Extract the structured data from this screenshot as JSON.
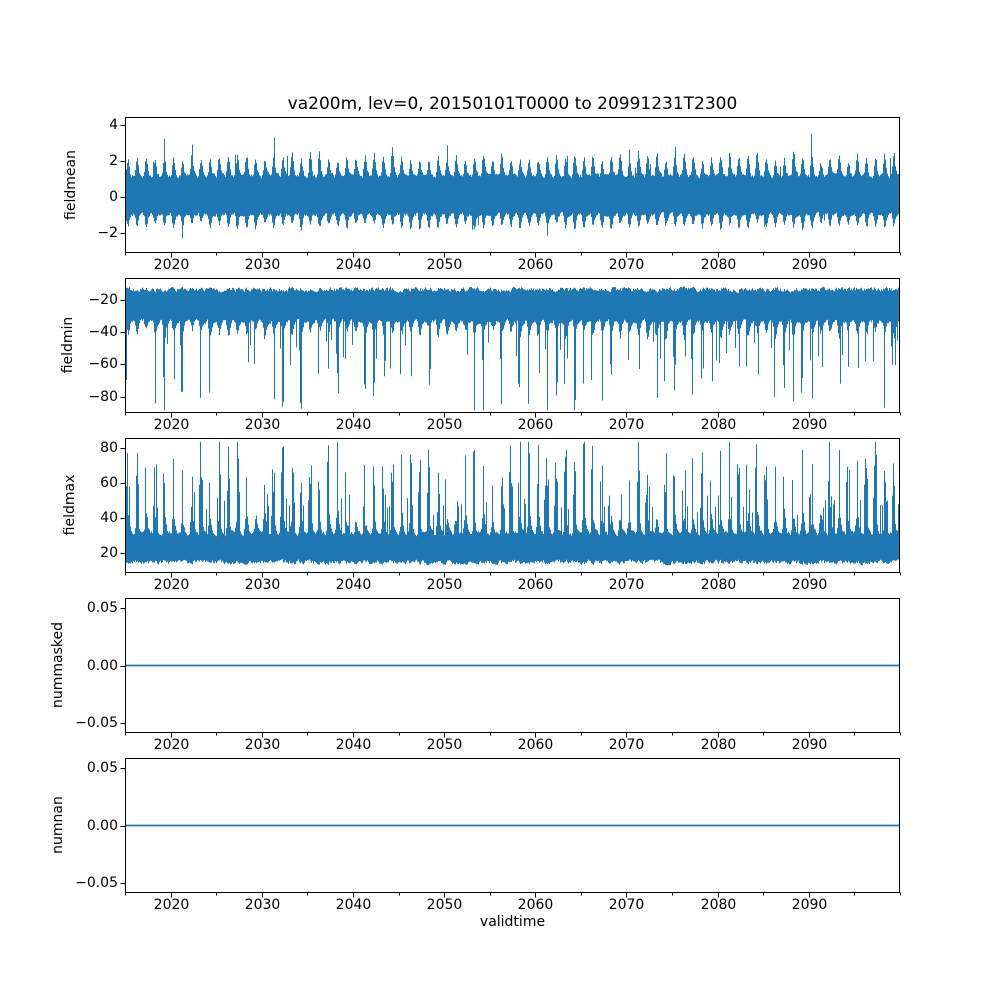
{
  "figure": {
    "title": "va200m, lev=0, 20150101T0000 to 20991231T2300",
    "xlabel": "validtime",
    "line_color": "#1f77b4",
    "background": "#ffffff",
    "axes_color": "#000000"
  },
  "chart_data": [
    {
      "type": "line",
      "title": "va200m, lev=0, 20150101T0000 to 20991231T2300",
      "ylabel": "fieldmean",
      "series_name": "fieldmean",
      "xlim": [
        2015,
        2100
      ],
      "ylim": [
        -3.08,
        4.45
      ],
      "yticks": [
        -2,
        0,
        2,
        4
      ],
      "ytick_decimals": 0,
      "xticks": [
        2020,
        2030,
        2040,
        2050,
        2060,
        2070,
        2080,
        2090
      ],
      "xminor_step": 5,
      "grid": false,
      "legend": "none",
      "summary": {
        "description": "dense hourly mean with annual cycle",
        "typical_band": [
          -1.7,
          2.4
        ],
        "min": -2.78,
        "max": 3.95
      },
      "gen": {
        "kind": "band",
        "seed": 11,
        "season_pow": 1.6,
        "up_base": 1.0,
        "up_noise": 0.35,
        "up_seasonal": 1.55,
        "up_spike_p": 0.03,
        "up_spike": 1.15,
        "up_max": 3.95,
        "lo_base": -0.78,
        "lo_noise": 0.3,
        "lo_seasonal": 1.0,
        "lo_spike_p": 0.03,
        "lo_spike": 0.85,
        "lo_min": -2.78
      }
    },
    {
      "type": "line",
      "ylabel": "fieldmin",
      "series_name": "fieldmin",
      "xlim": [
        2015,
        2100
      ],
      "ylim": [
        -90.1,
        -6.4
      ],
      "yticks": [
        -80,
        -60,
        -40,
        -20
      ],
      "ytick_decimals": 0,
      "xticks": [
        2020,
        2030,
        2040,
        2050,
        2060,
        2070,
        2080,
        2090
      ],
      "xminor_step": 5,
      "grid": false,
      "legend": "none",
      "summary": {
        "description": "field minimum, dense band near top with seasonal downward spikes",
        "typical_band": [
          -47,
          -11
        ],
        "min": -88,
        "max": -11
      },
      "gen": {
        "kind": "spikes-down",
        "seed": 22,
        "season_pow": 1.4,
        "top_base": -11,
        "top_noise": 5,
        "base": -31,
        "seasonal": 16,
        "base_noise": 4,
        "spike_p": 0.38,
        "spike_base": 6,
        "spike_amp": 44,
        "clamp": -88.5
      }
    },
    {
      "type": "line",
      "ylabel": "fieldmax",
      "series_name": "fieldmax",
      "xlim": [
        2015,
        2100
      ],
      "ylim": [
        8.6,
        85.7
      ],
      "yticks": [
        20,
        40,
        60,
        80
      ],
      "ytick_decimals": 0,
      "xticks": [
        2020,
        2030,
        2040,
        2050,
        2060,
        2070,
        2080,
        2090
      ],
      "xminor_step": 5,
      "grid": false,
      "legend": "none",
      "summary": {
        "description": "field maximum, dense band near bottom with seasonal upward spikes",
        "typical_band": [
          12.5,
          50
        ],
        "min": 12,
        "max": 83
      },
      "gen": {
        "kind": "spikes-up",
        "seed": 33,
        "season_pow": 1.2,
        "base_bottom": 12.5,
        "bottom_noise": 4.5,
        "base": 29,
        "seasonal": 18,
        "base_noise": 4,
        "spike_p": 0.75,
        "spike_base": 4,
        "spike_amp": 42,
        "clamp": 83.5
      }
    },
    {
      "type": "line",
      "ylabel": "nummasked",
      "series_name": "nummasked",
      "xlim": [
        2015,
        2100
      ],
      "ylim": [
        -0.0587,
        0.0587
      ],
      "yticks": [
        -0.05,
        0,
        0.05
      ],
      "ytick_decimals": 2,
      "xticks": [
        2020,
        2030,
        2040,
        2050,
        2060,
        2070,
        2080,
        2090
      ],
      "xminor_step": 5,
      "grid": false,
      "legend": "none",
      "summary": {
        "description": "constant zero line",
        "value": 0
      },
      "gen": {
        "kind": "constant",
        "value": 0
      }
    },
    {
      "type": "line",
      "ylabel": "numnan",
      "series_name": "numnan",
      "xlim": [
        2015,
        2100
      ],
      "ylim": [
        -0.0587,
        0.0587
      ],
      "yticks": [
        -0.05,
        0,
        0.05
      ],
      "ytick_decimals": 2,
      "xticks": [
        2020,
        2030,
        2040,
        2050,
        2060,
        2070,
        2080,
        2090
      ],
      "xminor_step": 5,
      "grid": false,
      "legend": "none",
      "summary": {
        "description": "constant zero line",
        "value": 0
      },
      "gen": {
        "kind": "constant",
        "value": 0
      }
    }
  ]
}
